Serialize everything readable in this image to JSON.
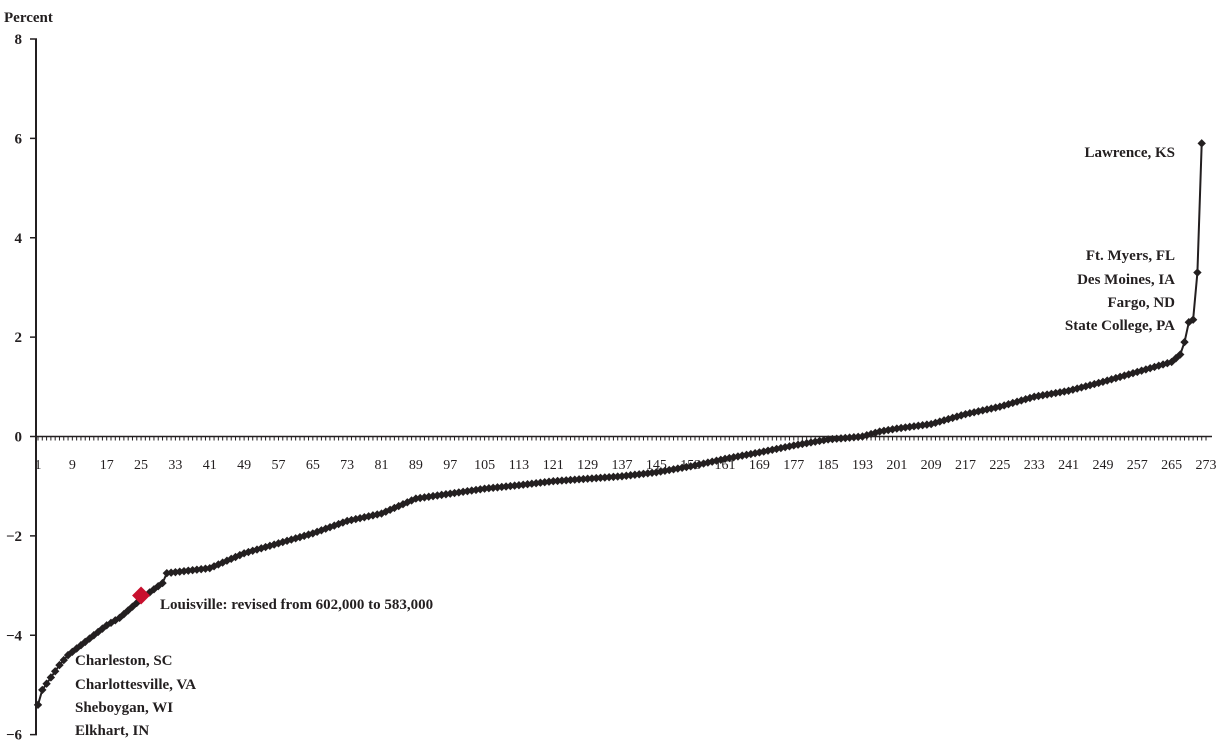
{
  "chart_data": {
    "type": "line",
    "ylabel": "Percent",
    "ylim": [
      -6,
      8
    ],
    "y_ticks": [
      "8",
      "6",
      "4",
      "2",
      "0",
      "−2",
      "−4",
      "−6"
    ],
    "y_tick_values": [
      8,
      6,
      4,
      2,
      0,
      -2,
      -4,
      -6
    ],
    "x_ticks": [
      "1",
      "9",
      "17",
      "25",
      "33",
      "41",
      "49",
      "57",
      "65",
      "73",
      "81",
      "89",
      "97",
      "105",
      "113",
      "121",
      "129",
      "137",
      "145",
      "153",
      "161",
      "169",
      "177",
      "185",
      "193",
      "201",
      "209",
      "217",
      "225",
      "233",
      "241",
      "249",
      "257",
      "265",
      "273"
    ],
    "x_tick_values": [
      1,
      9,
      17,
      25,
      33,
      41,
      49,
      57,
      65,
      73,
      81,
      89,
      97,
      105,
      113,
      121,
      129,
      137,
      145,
      153,
      161,
      169,
      177,
      185,
      193,
      201,
      209,
      217,
      225,
      233,
      241,
      249,
      257,
      265,
      273
    ],
    "xlim": [
      1,
      273
    ],
    "series_color": "#231f20",
    "highlight_color": "#c8102e",
    "curve_knots": [
      [
        1,
        -5.4
      ],
      [
        2,
        -5.1
      ],
      [
        4,
        -4.85
      ],
      [
        6,
        -4.6
      ],
      [
        8,
        -4.4
      ],
      [
        11,
        -4.2
      ],
      [
        14,
        -4.0
      ],
      [
        17,
        -3.8
      ],
      [
        20,
        -3.65
      ],
      [
        24,
        -3.35
      ],
      [
        26,
        -3.2
      ],
      [
        30,
        -2.95
      ],
      [
        31,
        -2.75
      ],
      [
        41,
        -2.65
      ],
      [
        49,
        -2.35
      ],
      [
        57,
        -2.15
      ],
      [
        65,
        -1.95
      ],
      [
        73,
        -1.7
      ],
      [
        81,
        -1.55
      ],
      [
        89,
        -1.25
      ],
      [
        97,
        -1.15
      ],
      [
        105,
        -1.05
      ],
      [
        113,
        -0.98
      ],
      [
        121,
        -0.9
      ],
      [
        129,
        -0.85
      ],
      [
        137,
        -0.8
      ],
      [
        145,
        -0.72
      ],
      [
        153,
        -0.6
      ],
      [
        161,
        -0.45
      ],
      [
        169,
        -0.32
      ],
      [
        177,
        -0.18
      ],
      [
        185,
        -0.06
      ],
      [
        193,
        0.0
      ],
      [
        197,
        0.1
      ],
      [
        201,
        0.16
      ],
      [
        209,
        0.25
      ],
      [
        217,
        0.45
      ],
      [
        225,
        0.6
      ],
      [
        233,
        0.8
      ],
      [
        241,
        0.92
      ],
      [
        249,
        1.1
      ],
      [
        257,
        1.3
      ],
      [
        265,
        1.5
      ],
      [
        267,
        1.65
      ],
      [
        268,
        1.9
      ],
      [
        269,
        2.3
      ],
      [
        270,
        2.35
      ],
      [
        271,
        3.3
      ],
      [
        272,
        5.9
      ]
    ],
    "highlight": {
      "x": 25,
      "y": -3.2,
      "label": "Louisville: revised from 602,000 to 583,000"
    },
    "annotations_top": [
      "Lawrence, KS",
      "Ft. Myers, FL",
      "Des Moines, IA",
      "Fargo, ND",
      "State College, PA"
    ],
    "annotations_bottom": [
      "Charleston, SC",
      "Charlottesville, VA",
      "Sheboygan, WI",
      "Elkhart, IN"
    ]
  }
}
